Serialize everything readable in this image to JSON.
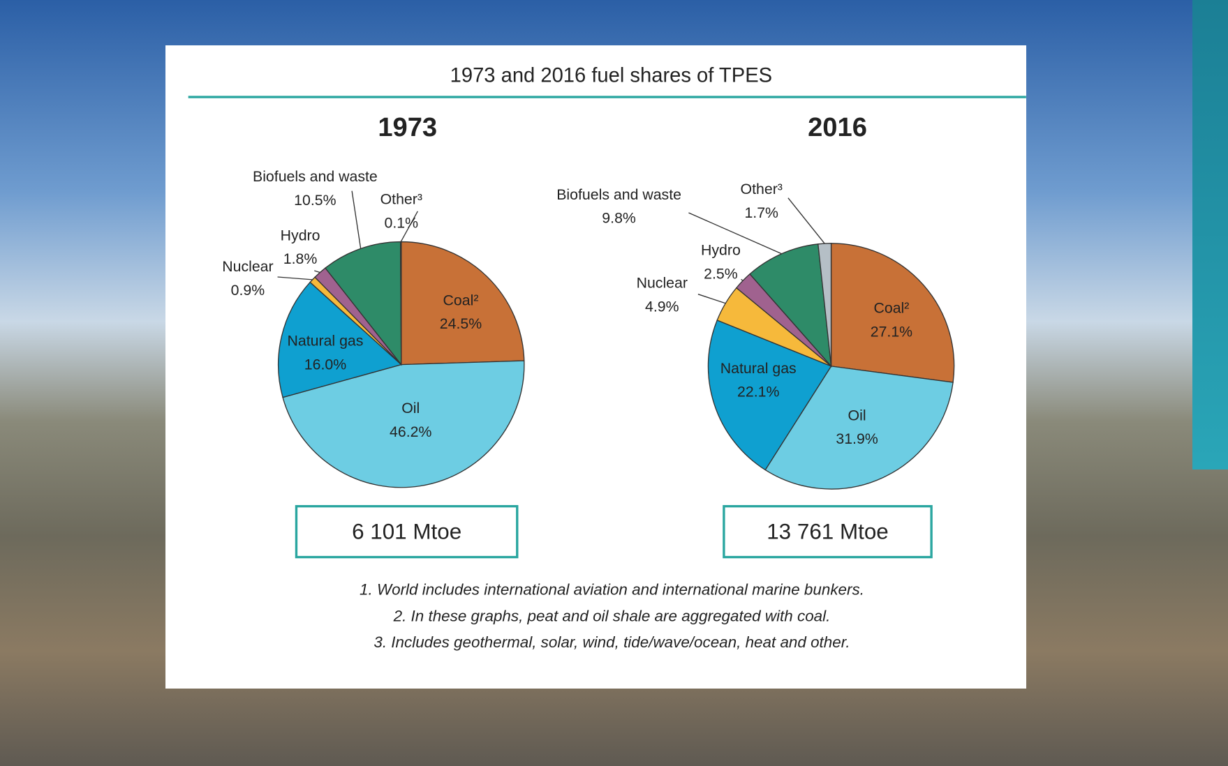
{
  "title": "1973 and 2016 fuel shares of TPES",
  "chart_data": [
    {
      "type": "pie",
      "title": "1973",
      "categories": [
        "Coal²",
        "Oil",
        "Natural gas",
        "Nuclear",
        "Hydro",
        "Biofuels and waste",
        "Other³"
      ],
      "values": [
        24.5,
        46.2,
        16.0,
        0.9,
        1.8,
        10.5,
        0.1
      ],
      "value_labels": [
        "24.5%",
        "46.2%",
        "16.0%",
        "0.9%",
        "1.8%",
        "10.5%",
        "0.1%"
      ],
      "colors": [
        "#c87137",
        "#6dcde3",
        "#0fa0d0",
        "#f6b93b",
        "#a0628f",
        "#2e8b68",
        "#b5bfc6"
      ],
      "total": "6 101 Mtoe"
    },
    {
      "type": "pie",
      "title": "2016",
      "categories": [
        "Coal²",
        "Oil",
        "Natural gas",
        "Nuclear",
        "Hydro",
        "Biofuels and waste",
        "Other³"
      ],
      "values": [
        27.1,
        31.9,
        22.1,
        4.9,
        2.5,
        9.8,
        1.7
      ],
      "value_labels": [
        "27.1%",
        "31.9%",
        "22.1%",
        "4.9%",
        "2.5%",
        "9.8%",
        "1.7%"
      ],
      "colors": [
        "#c87137",
        "#6dcde3",
        "#0fa0d0",
        "#f6b93b",
        "#a0628f",
        "#2e8b68",
        "#b5bfc6"
      ],
      "total": "13 761 Mtoe"
    }
  ],
  "notes": [
    "1. World includes international aviation and international marine bunkers.",
    "2. In these graphs, peat and oil shale are aggregated with coal.",
    "3. Includes geothermal, solar, wind, tide/wave/ocean, heat and other."
  ]
}
